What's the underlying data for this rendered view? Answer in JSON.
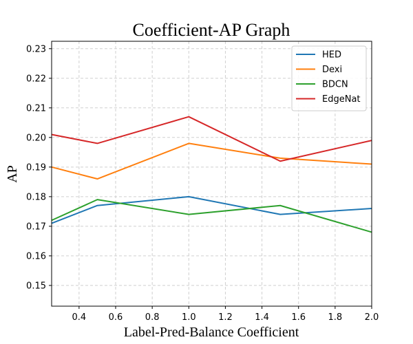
{
  "chart_data": {
    "type": "line",
    "title": "Coefficient-AP Graph",
    "xlabel": "Label-Pred-Balance Coefficient",
    "ylabel": "AP",
    "xlim": [
      0.25,
      2.0
    ],
    "ylim": [
      0.143,
      0.2325
    ],
    "grid": true,
    "legend_position": "top-right",
    "x_ticks": [
      0.4,
      0.6,
      0.8,
      1.0,
      1.2,
      1.4,
      1.6,
      1.8,
      2.0
    ],
    "x_tick_labels": [
      "0.4",
      "0.6",
      "0.8",
      "1.0",
      "1.2",
      "1.4",
      "1.6",
      "1.8",
      "2.0"
    ],
    "y_ticks": [
      0.15,
      0.16,
      0.17,
      0.18,
      0.19,
      0.2,
      0.21,
      0.22,
      0.23
    ],
    "y_tick_labels": [
      "0.15",
      "0.16",
      "0.17",
      "0.18",
      "0.19",
      "0.20",
      "0.21",
      "0.22",
      "0.23"
    ],
    "x": [
      0.25,
      0.5,
      1.0,
      1.5,
      2.0
    ],
    "series": [
      {
        "name": "HED",
        "color": "#1f77b4",
        "values": [
          0.171,
          0.177,
          0.18,
          0.174,
          0.176
        ]
      },
      {
        "name": "Dexi",
        "color": "#ff7f0e",
        "values": [
          0.19,
          0.186,
          0.198,
          0.193,
          0.191
        ]
      },
      {
        "name": "BDCN",
        "color": "#2ca02c",
        "values": [
          0.172,
          0.179,
          0.174,
          0.177,
          0.168
        ]
      },
      {
        "name": "EdgeNat",
        "color": "#d62728",
        "values": [
          0.201,
          0.198,
          0.207,
          0.192,
          0.199
        ]
      }
    ]
  }
}
